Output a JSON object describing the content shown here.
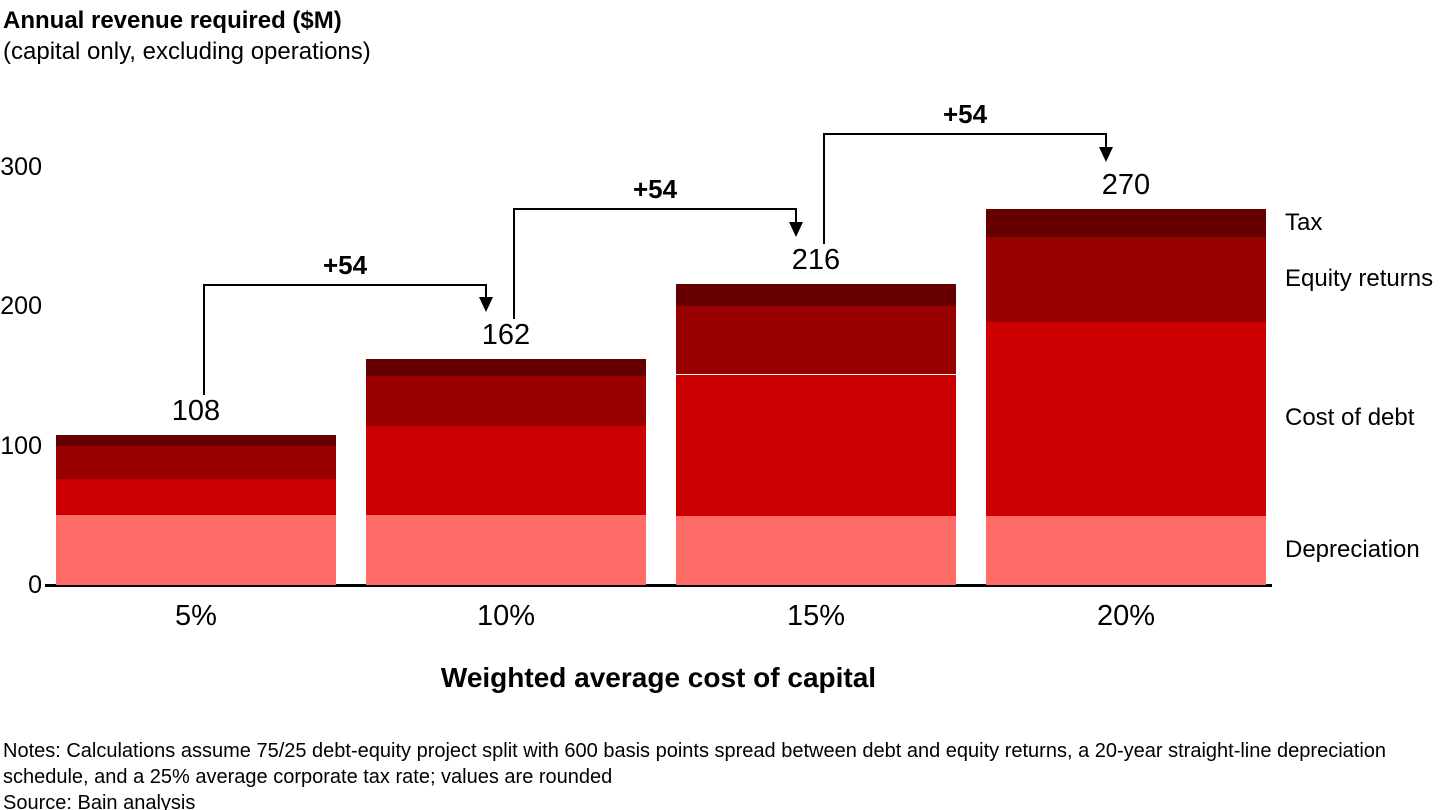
{
  "header": {
    "title": "Annual revenue required ($M)",
    "subtitle": "(capital only, excluding operations)"
  },
  "chart_data": {
    "type": "bar",
    "stacked": true,
    "title": "Annual revenue required ($M)",
    "subtitle": "(capital only, excluding operations)",
    "categories": [
      "5%",
      "10%",
      "15%",
      "20%"
    ],
    "series": [
      {
        "name": "Depreciation",
        "color": "#FF6B66",
        "values": [
          50,
          50,
          50,
          50
        ]
      },
      {
        "name": "Cost of debt",
        "color": "#CC0000",
        "values": [
          26,
          64,
          101,
          139
        ]
      },
      {
        "name": "Equity returns",
        "color": "#990000",
        "values": [
          24,
          36,
          49,
          61
        ]
      },
      {
        "name": "Tax",
        "color": "#660000",
        "values": [
          8,
          12,
          16,
          20
        ]
      }
    ],
    "totals": [
      108,
      162,
      216,
      270
    ],
    "total_labels": [
      "108",
      "162",
      "216",
      "270"
    ],
    "delta_labels": [
      "+54",
      "+54",
      "+54"
    ],
    "xlabel": "Weighted average cost of capital",
    "ylabel": "",
    "ylim": [
      0,
      300
    ],
    "yticks": [
      0,
      100,
      200,
      300
    ],
    "grid": false,
    "legend_position": "right",
    "legend_order_top_to_bottom": [
      "Tax",
      "Equity returns",
      "Cost of debt",
      "Depreciation"
    ]
  },
  "footer": {
    "notes_lines": [
      "Notes: Calculations assume 75/25 debt-equity project split with 600 basis points spread between debt and equity returns, a 20-year straight-line depreciation",
      "schedule, and a 25% average corporate tax rate; values are rounded"
    ],
    "source": "Source: Bain analysis"
  }
}
